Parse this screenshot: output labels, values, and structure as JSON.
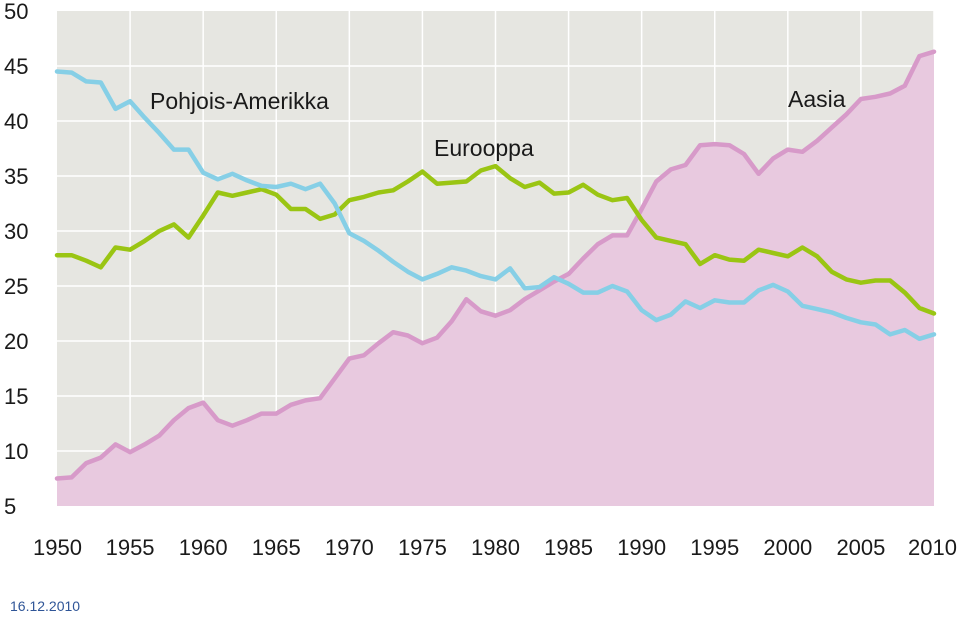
{
  "footer": {
    "date": "16.12.2010"
  },
  "chart_data": {
    "type": "line",
    "xlim": [
      1950,
      2010
    ],
    "ylim": [
      5,
      50
    ],
    "y_ticks": [
      5,
      10,
      15,
      20,
      25,
      30,
      35,
      40,
      45,
      50
    ],
    "x_ticks": [
      1950,
      1955,
      1960,
      1965,
      1970,
      1975,
      1980,
      1985,
      1990,
      1995,
      2000,
      2005,
      2010
    ],
    "grid": true,
    "colors": {
      "background": "#e6e6e1",
      "grid": "#ffffff",
      "asia_fill": "#e8c9df",
      "asia_line": "#d79ac9",
      "europe": "#9ac513",
      "north_america": "#86cfe6"
    },
    "x": [
      1950,
      1951,
      1952,
      1953,
      1954,
      1955,
      1956,
      1957,
      1958,
      1959,
      1960,
      1961,
      1962,
      1963,
      1964,
      1965,
      1966,
      1967,
      1968,
      1969,
      1970,
      1971,
      1972,
      1973,
      1974,
      1975,
      1976,
      1977,
      1978,
      1979,
      1980,
      1981,
      1982,
      1983,
      1984,
      1985,
      1986,
      1987,
      1988,
      1989,
      1990,
      1991,
      1992,
      1993,
      1994,
      1995,
      1996,
      1997,
      1998,
      1999,
      2000,
      2001,
      2002,
      2003,
      2004,
      2005,
      2006,
      2007,
      2008,
      2009,
      2010
    ],
    "series": [
      {
        "name": "Aasia",
        "key": "asia",
        "values": [
          7.5,
          7.6,
          8.9,
          9.4,
          10.6,
          9.9,
          10.6,
          11.4,
          12.8,
          13.9,
          14.4,
          12.8,
          12.3,
          12.8,
          13.4,
          13.4,
          14.2,
          14.6,
          14.8,
          16.6,
          18.4,
          18.7,
          19.8,
          20.8,
          20.5,
          19.8,
          20.3,
          21.8,
          23.8,
          22.7,
          22.3,
          22.8,
          23.8,
          24.6,
          25.4,
          26.1,
          27.5,
          28.8,
          29.6,
          29.6,
          32.0,
          34.5,
          35.6,
          36.0,
          37.8,
          37.9,
          37.8,
          37.0,
          35.2,
          36.6,
          37.4,
          37.2,
          38.2,
          39.4,
          40.6,
          42.0,
          42.2,
          42.5,
          43.2,
          45.9,
          46.3
        ]
      },
      {
        "name": "Eurooppa",
        "key": "europe",
        "values": [
          27.8,
          27.8,
          27.3,
          26.7,
          28.5,
          28.3,
          29.1,
          30.0,
          30.6,
          29.4,
          31.4,
          33.5,
          33.2,
          33.5,
          33.8,
          33.3,
          32.0,
          32.0,
          31.1,
          31.5,
          32.8,
          33.1,
          33.5,
          33.7,
          34.5,
          35.4,
          34.3,
          34.4,
          34.5,
          35.5,
          35.9,
          34.8,
          34.0,
          34.4,
          33.4,
          33.5,
          34.2,
          33.3,
          32.8,
          33.0,
          31.0,
          29.4,
          29.1,
          28.8,
          27.0,
          27.8,
          27.4,
          27.3,
          28.3,
          28.0,
          27.7,
          28.5,
          27.7,
          26.3,
          25.6,
          25.3,
          25.5,
          25.5,
          24.4,
          23.0,
          22.5
        ]
      },
      {
        "name": "Pohjois-Amerikka",
        "key": "north_america",
        "values": [
          44.5,
          44.4,
          43.6,
          43.5,
          41.1,
          41.8,
          40.3,
          38.9,
          37.4,
          37.4,
          35.3,
          34.7,
          35.2,
          34.6,
          34.1,
          34.0,
          34.3,
          33.8,
          34.3,
          32.5,
          29.8,
          29.1,
          28.2,
          27.2,
          26.3,
          25.6,
          26.1,
          26.7,
          26.4,
          25.9,
          25.6,
          26.6,
          24.8,
          24.9,
          25.8,
          25.2,
          24.4,
          24.4,
          25.0,
          24.5,
          22.8,
          21.9,
          22.4,
          23.6,
          23.0,
          23.7,
          23.5,
          23.5,
          24.6,
          25.1,
          24.5,
          23.2,
          22.9,
          22.6,
          22.1,
          21.7,
          21.5,
          20.6,
          21.0,
          20.2,
          20.6
        ]
      }
    ],
    "labels": {
      "north_america": "Pohjois-Amerikka",
      "europe": "Eurooppa",
      "asia": "Aasia"
    }
  }
}
